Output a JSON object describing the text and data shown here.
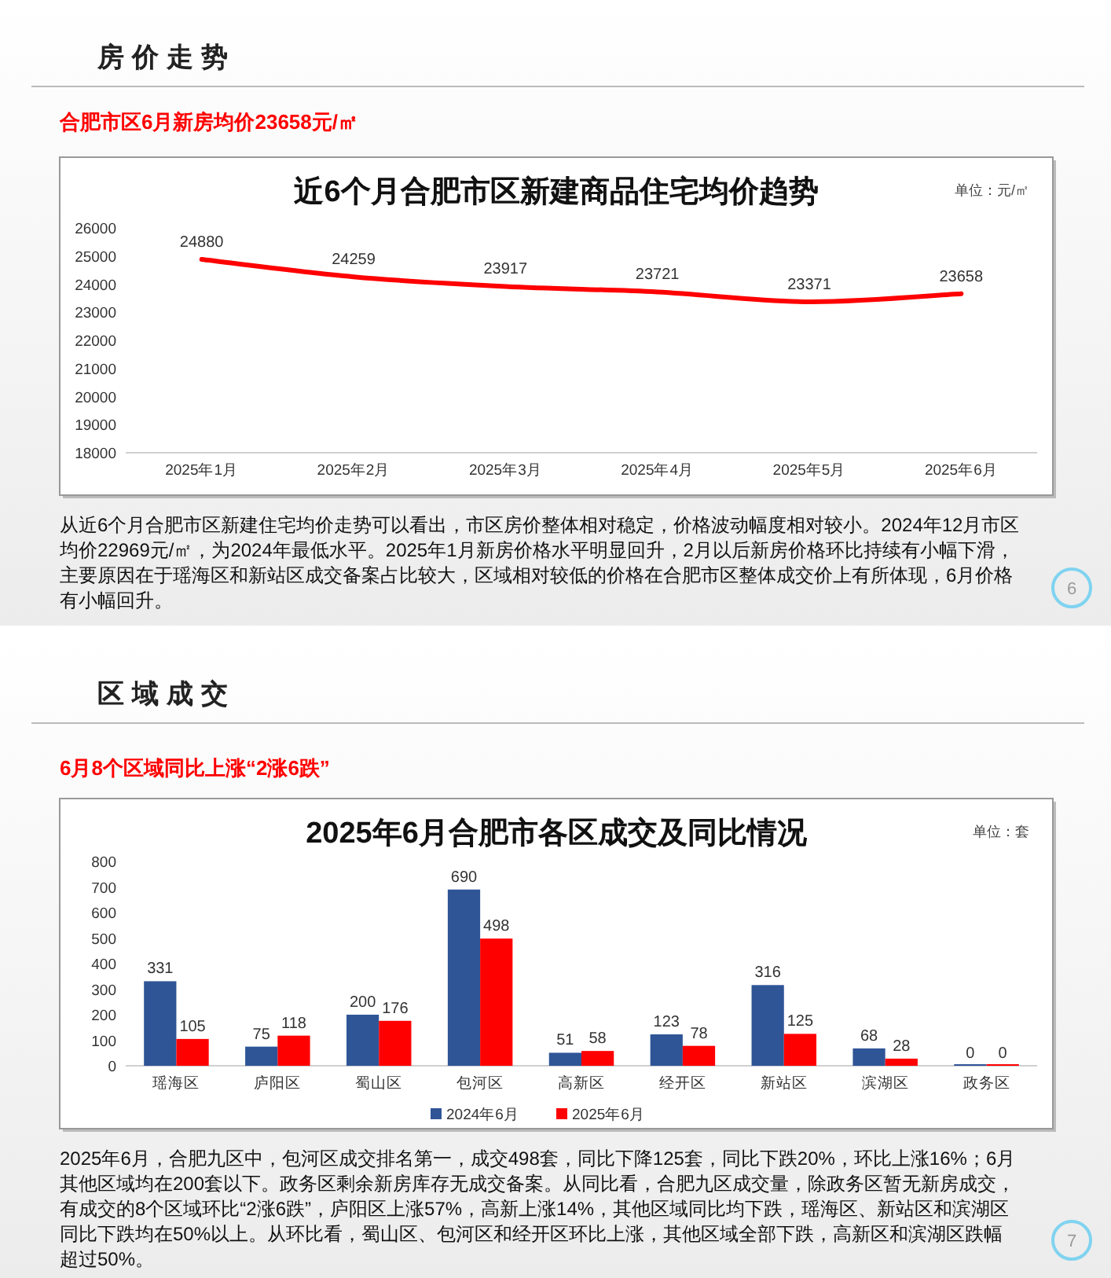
{
  "chart_data": [
    {
      "type": "line",
      "title": "近6个月合肥市区新建商品住宅均价趋势",
      "annotations": [
        "房价走势",
        "合肥市区6月新房均价23658元/㎡",
        "单位：元/㎡",
        "从近6个月合肥市区新建住宅均价走势可以看出，市区房价整体相对稳定，价格波动幅度相对较小。2024年12月市区均价22969元/㎡，为2024年最低水平。2025年1月新房价格水平明显回升，2月以后新房价格环比持续有小幅下滑，主要原因在于瑶海区和新站区成交备案占比较大，区域相对较低的价格在合肥市区整体成交价上有所体现，6月价格有小幅回升。",
        "6"
      ],
      "categories": [
        "2025年1月",
        "2025年2月",
        "2025年3月",
        "2025年4月",
        "2025年5月",
        "2025年6月"
      ],
      "series": [
        {
          "color": "#ff0000",
          "values": [
            24880,
            24259,
            23917,
            23721,
            23371,
            23658
          ]
        }
      ],
      "ylim": [
        18000,
        26000
      ],
      "yticks": [
        18000,
        19000,
        20000,
        21000,
        22000,
        23000,
        24000,
        25000,
        26000
      ],
      "data_labels": true,
      "grid": false,
      "legend": false,
      "marker": "none",
      "line_style": "solid"
    },
    {
      "type": "bar",
      "title": "2025年6月合肥市各区成交及同比情况",
      "annotations": [
        "区域成交",
        "6月8个区域同比上涨“2涨6跌”",
        "单位：套",
        "2025年6月，合肥九区中，包河区成交排名第一，成交498套，同比下降125套，同比下跌20%，环比上涨16%；6月其他区域均在200套以下。政务区剩余新房库存无成交备案。从同比看，合肥九区成交量，除政务区暂无新房成交，有成交的8个区域环比“2涨6跌”，庐阳区上涨57%，高新上涨14%，其他区域同比均下跌，瑶海区、新站区和滨湖区同比下跌均在50%以上。从环比看，蜀山区、包河区和经开区环比上涨，其他区域全部下跌，高新区和滨湖区跌幅超过50%。",
        "7"
      ],
      "categories": [
        "瑶海区",
        "庐阳区",
        "蜀山区",
        "包河区",
        "高新区",
        "经开区",
        "新站区",
        "滨湖区",
        "政务区"
      ],
      "series": [
        {
          "name": "2024年6月",
          "color": "#2f5597",
          "values": [
            331,
            75,
            200,
            690,
            51,
            123,
            316,
            68,
            0
          ]
        },
        {
          "name": "2025年6月",
          "color": "#ff0000",
          "values": [
            105,
            118,
            176,
            498,
            58,
            78,
            125,
            28,
            0
          ]
        }
      ],
      "ylim": [
        0,
        800
      ],
      "yticks": [
        0,
        100,
        200,
        300,
        400,
        500,
        600,
        700,
        800
      ],
      "data_labels": true,
      "grid": false,
      "legend": "bottom"
    }
  ]
}
